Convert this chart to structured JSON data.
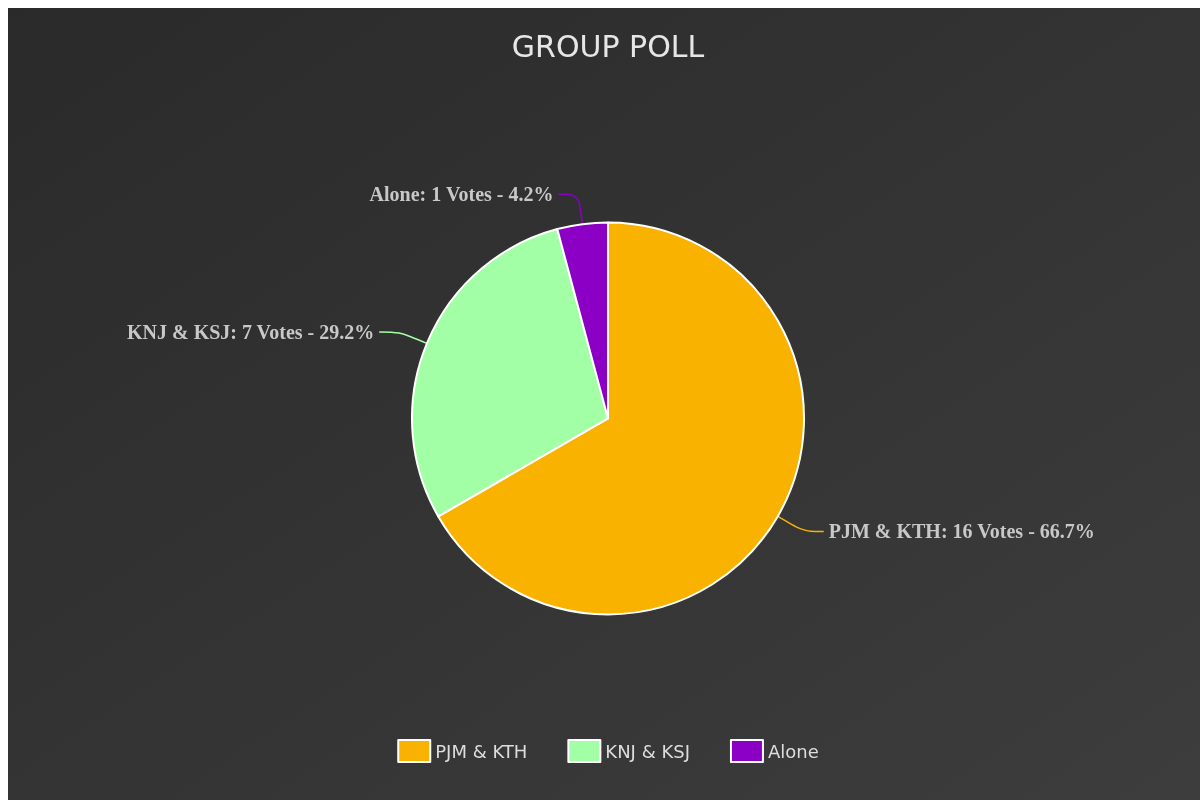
{
  "chart_data": {
    "type": "pie",
    "title": "GROUP POLL",
    "categories": [
      "PJM & KTH",
      "KNJ & KSJ",
      "Alone"
    ],
    "values": [
      16,
      7,
      1
    ],
    "colors": [
      "#f9b200",
      "#a3ffa6",
      "#8b00c4"
    ],
    "value_labels": [
      "PJM & KTH: 16 Votes - 66.7%",
      "KNJ & KSJ: 7 Votes - 29.2%",
      "Alone: 1 Votes - 4.2%"
    ],
    "legend": "bottom"
  }
}
